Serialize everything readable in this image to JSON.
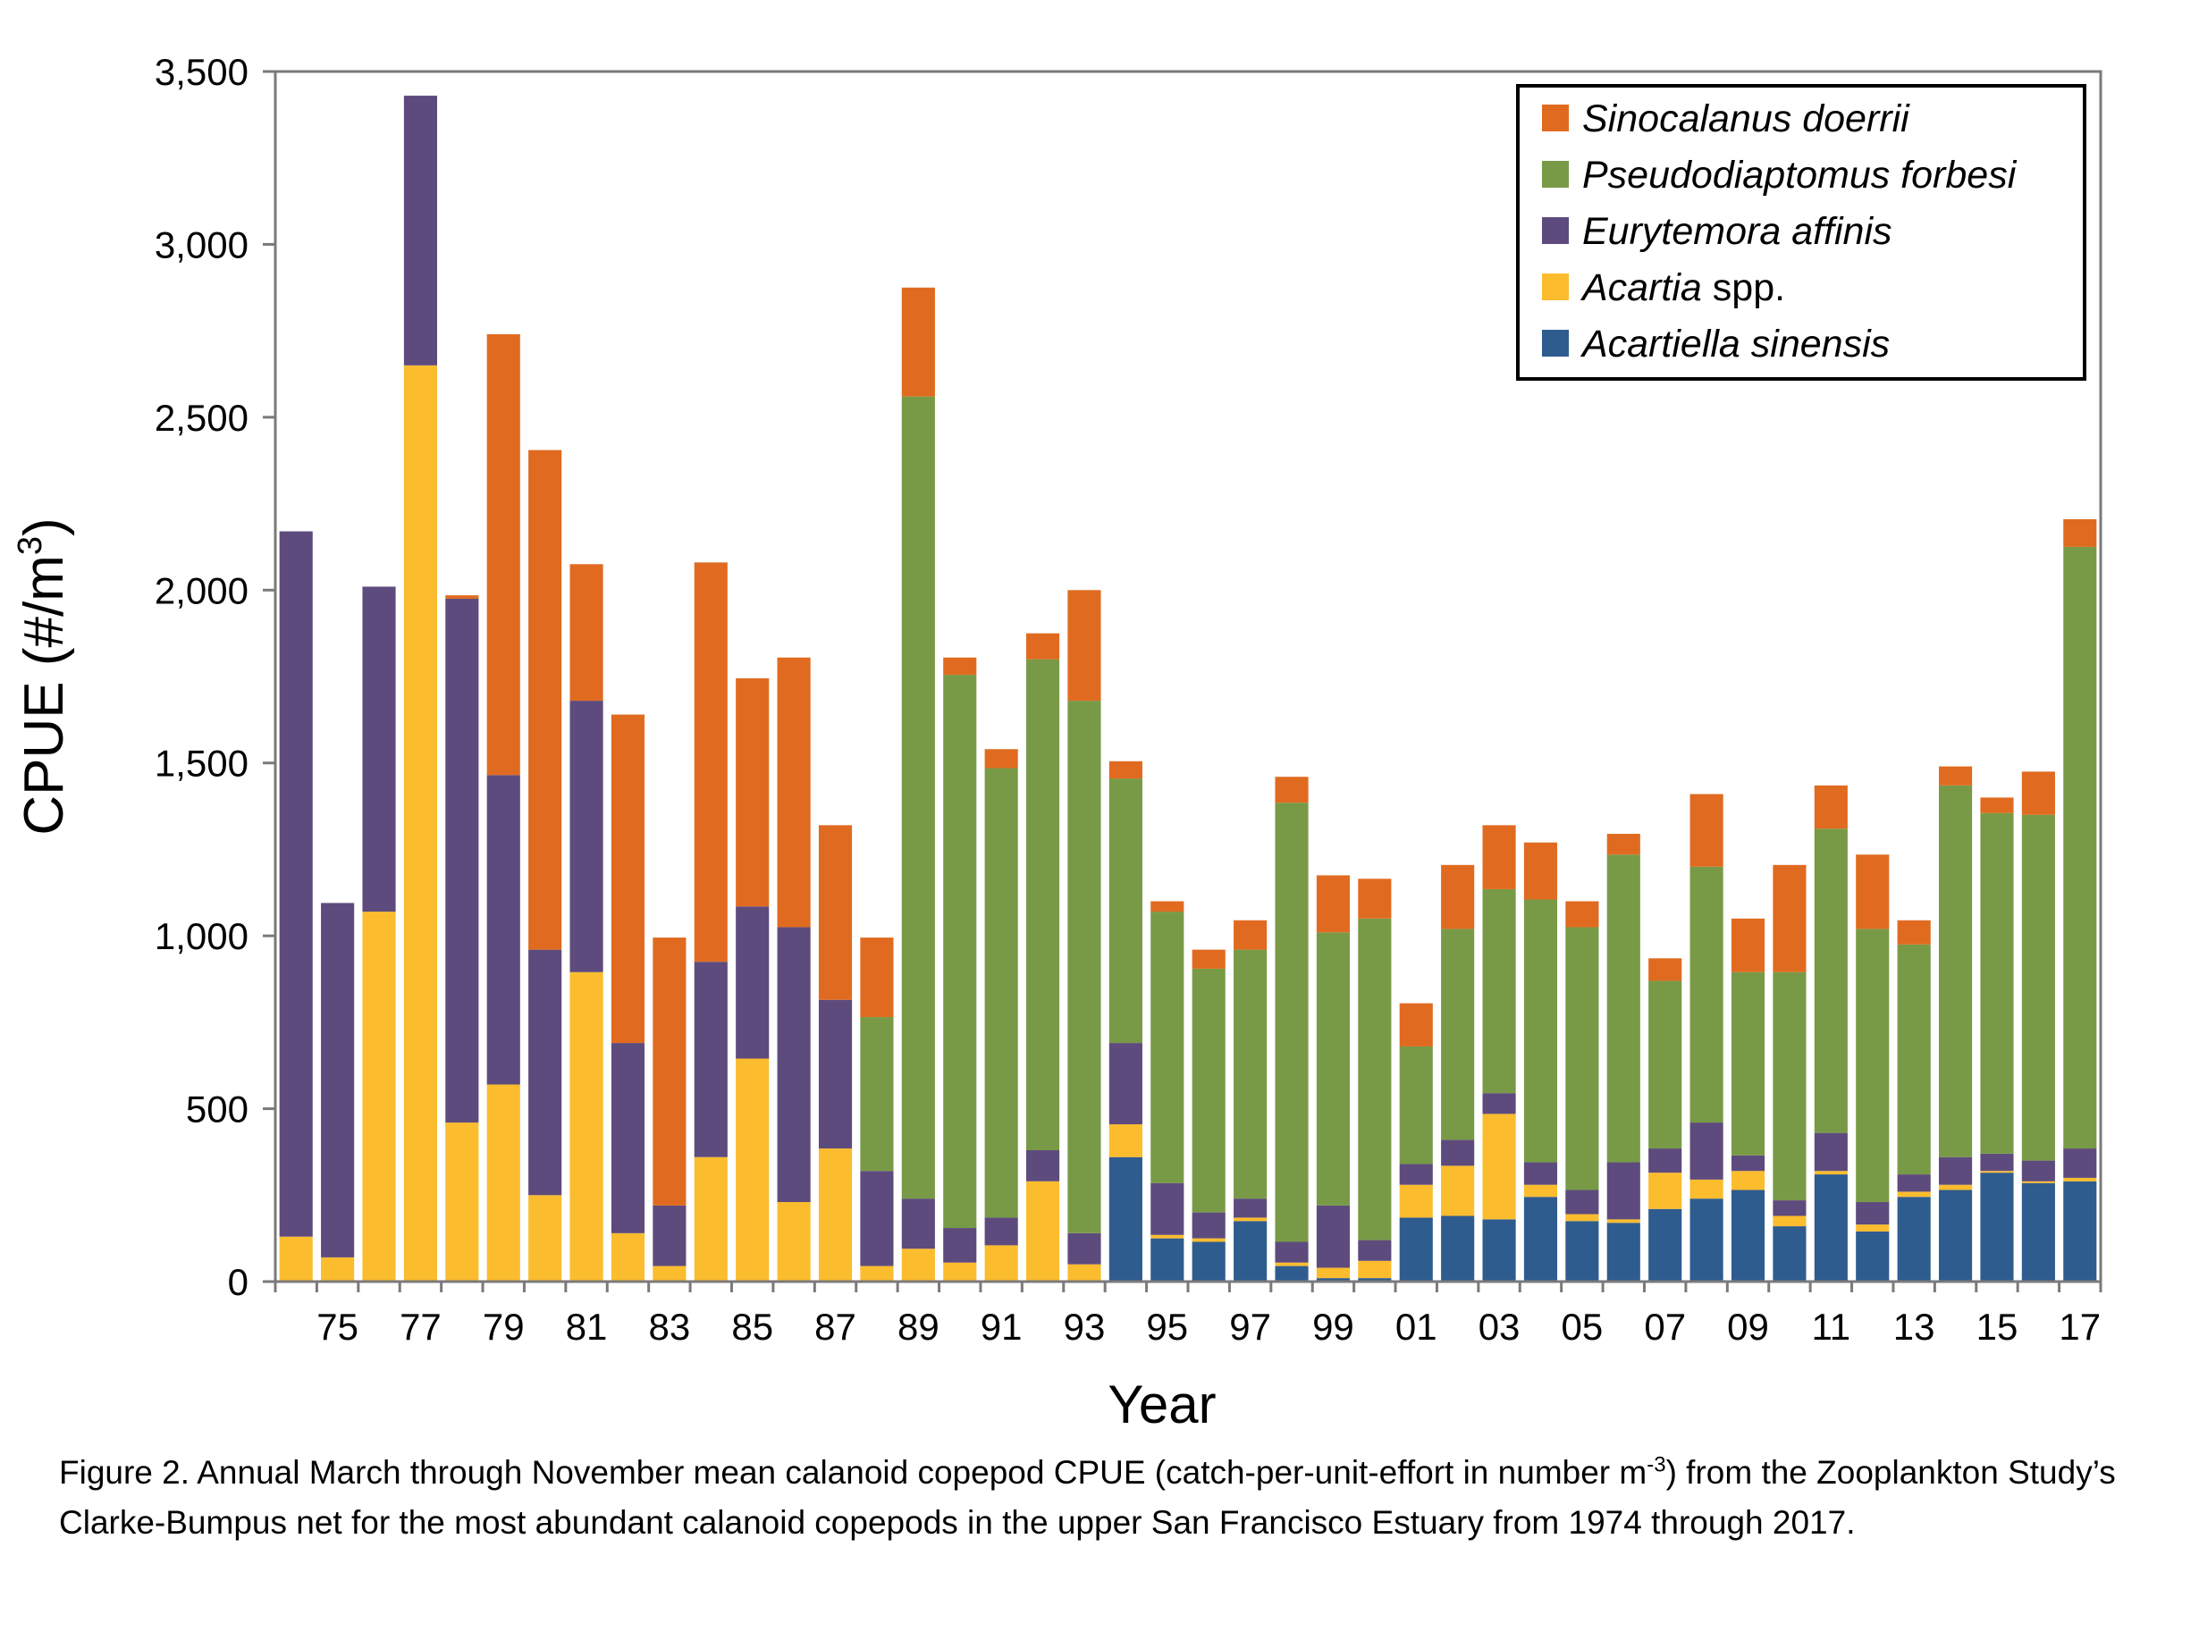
{
  "chart_data": {
    "type": "bar",
    "stacked": true,
    "xlabel": "Year",
    "ylabel": "CPUE (#/m",
    "ylabel_superscript": "3",
    "ylabel_close": ")",
    "ylim": [
      0,
      3500
    ],
    "yticks": [
      0,
      500,
      1000,
      1500,
      2000,
      2500,
      3000,
      3500
    ],
    "ytick_labels": [
      "0",
      "500",
      "1,000",
      "1,500",
      "2,000",
      "2,500",
      "3,000",
      "3,500"
    ],
    "legend_position": "top-right",
    "categories": [
      "74",
      "75",
      "76",
      "77",
      "78",
      "79",
      "80",
      "81",
      "82",
      "83",
      "84",
      "85",
      "86",
      "87",
      "88",
      "89",
      "90",
      "91",
      "92",
      "93",
      "94",
      "95",
      "96",
      "97",
      "98",
      "99",
      "00",
      "01",
      "02",
      "03",
      "04",
      "05",
      "06",
      "07",
      "08",
      "09",
      "10",
      "11",
      "12",
      "13",
      "14",
      "15",
      "16",
      "17"
    ],
    "xtick_labels": [
      "75",
      "77",
      "79",
      "81",
      "83",
      "85",
      "87",
      "89",
      "91",
      "93",
      "95",
      "97",
      "99",
      "01",
      "03",
      "05",
      "07",
      "09",
      "11",
      "13",
      "15",
      "17"
    ],
    "series": [
      {
        "name_italic": "Acartiella sinensis",
        "name_plain": "",
        "color": "#2F5C8F",
        "values": [
          0,
          0,
          0,
          0,
          0,
          0,
          0,
          0,
          0,
          0,
          0,
          0,
          0,
          0,
          0,
          0,
          0,
          0,
          0,
          0,
          360,
          125,
          115,
          175,
          45,
          10,
          10,
          185,
          190,
          180,
          245,
          175,
          170,
          210,
          240,
          265,
          160,
          310,
          145,
          245,
          265,
          315,
          285,
          290
        ]
      },
      {
        "name_italic": "Acartia",
        "name_plain": " spp.",
        "color": "#FBBC2E",
        "values": [
          130,
          70,
          1070,
          2650,
          460,
          570,
          250,
          895,
          140,
          45,
          360,
          645,
          230,
          385,
          45,
          95,
          55,
          105,
          290,
          50,
          95,
          10,
          10,
          10,
          10,
          30,
          50,
          95,
          145,
          305,
          35,
          20,
          10,
          105,
          55,
          55,
          30,
          10,
          20,
          15,
          15,
          5,
          5,
          10
        ]
      },
      {
        "name_italic": "Eurytemora affinis",
        "name_plain": "",
        "color": "#5E4B7D",
        "values": [
          2040,
          1025,
          940,
          780,
          1515,
          895,
          710,
          785,
          550,
          175,
          565,
          440,
          795,
          430,
          275,
          145,
          100,
          80,
          90,
          90,
          235,
          150,
          75,
          55,
          60,
          180,
          60,
          60,
          75,
          60,
          65,
          70,
          165,
          70,
          165,
          45,
          45,
          110,
          65,
          50,
          80,
          50,
          60,
          85
        ]
      },
      {
        "name_italic": "Pseudodiaptomus forbesi",
        "name_plain": "",
        "color": "#789A46",
        "values": [
          0,
          0,
          0,
          0,
          0,
          0,
          0,
          0,
          0,
          0,
          0,
          0,
          0,
          0,
          445,
          2320,
          1600,
          1300,
          1420,
          1540,
          765,
          785,
          705,
          720,
          1270,
          790,
          930,
          340,
          610,
          590,
          760,
          760,
          890,
          485,
          740,
          530,
          660,
          880,
          790,
          665,
          1075,
          985,
          1000,
          1740
        ]
      },
      {
        "name_italic": "Sinocalanus doerrii",
        "name_plain": "",
        "color": "#E06B20",
        "values": [
          0,
          0,
          0,
          0,
          10,
          1275,
          1445,
          395,
          950,
          775,
          1155,
          660,
          780,
          505,
          230,
          315,
          50,
          55,
          75,
          320,
          50,
          30,
          55,
          85,
          75,
          165,
          115,
          125,
          185,
          185,
          165,
          75,
          60,
          65,
          210,
          155,
          310,
          125,
          215,
          70,
          55,
          45,
          125,
          80
        ]
      }
    ]
  },
  "legend": {
    "order": [
      4,
      3,
      2,
      1,
      0
    ]
  },
  "caption": {
    "part1": "Figure 2. Annual March through November mean calanoid copepod CPUE (catch-per-unit-effort in number m",
    "sup": "-3",
    "part2": ") from the Zooplankton Study’s Clarke-Bumpus net for the most abundant calanoid copepods in the upper San Francisco Estuary from 1974 through 2017."
  }
}
